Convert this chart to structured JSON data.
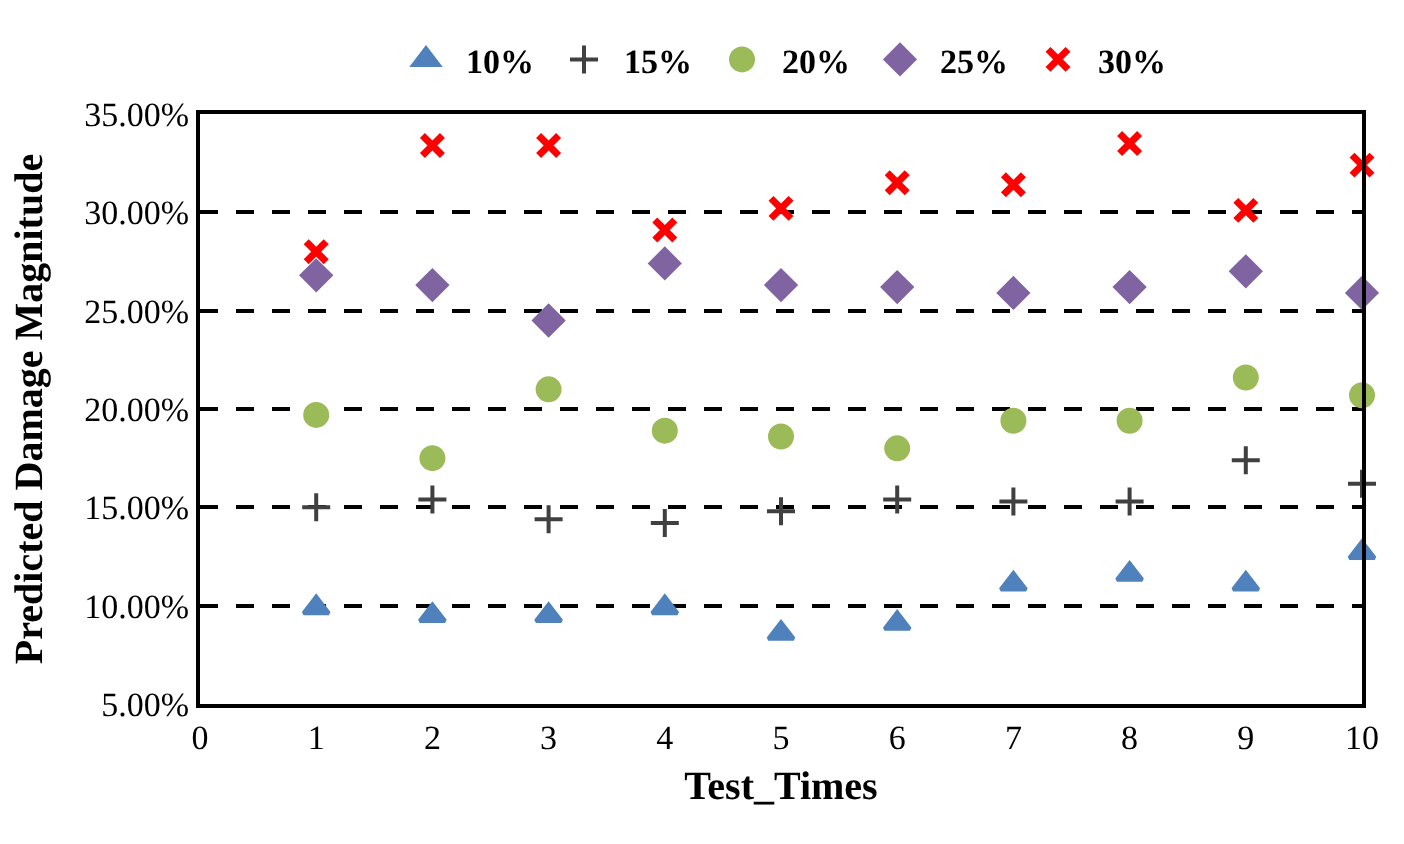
{
  "chart_data": {
    "type": "scatter",
    "xlabel": "Test_Times",
    "ylabel": "Predicted Damage Magnitude",
    "x": [
      1,
      2,
      3,
      4,
      5,
      6,
      7,
      8,
      9,
      10
    ],
    "series": [
      {
        "name": "10%",
        "color": "#4f81bd",
        "marker": "triangle",
        "values": [
          9.9,
          9.5,
          9.5,
          9.9,
          8.6,
          9.1,
          11.1,
          11.6,
          11.1,
          12.7
        ]
      },
      {
        "name": "15%",
        "color": "#404040",
        "marker": "cross",
        "values": [
          15.0,
          15.4,
          14.4,
          14.2,
          14.8,
          15.4,
          15.3,
          15.3,
          17.4,
          16.2
        ]
      },
      {
        "name": "20%",
        "color": "#9bbb59",
        "marker": "circle",
        "values": [
          19.7,
          17.5,
          21.0,
          18.9,
          18.6,
          18.0,
          19.4,
          19.4,
          21.6,
          20.7
        ]
      },
      {
        "name": "25%",
        "color": "#8064a2",
        "marker": "diamond",
        "values": [
          26.8,
          26.3,
          24.5,
          27.4,
          26.3,
          26.2,
          25.9,
          26.2,
          27.0,
          25.9
        ]
      },
      {
        "name": "30%",
        "color": "#ff0000",
        "marker": "cross",
        "values": [
          28.0,
          33.4,
          33.4,
          29.1,
          30.2,
          31.5,
          31.4,
          33.5,
          30.1,
          32.4
        ]
      }
    ],
    "xlim": [
      0,
      10
    ],
    "xticks": [
      0,
      1,
      2,
      3,
      4,
      5,
      6,
      7,
      8,
      9,
      10
    ],
    "ylim": [
      5,
      35
    ],
    "yticks": [
      {
        "value": 5,
        "label": "5.00%"
      },
      {
        "value": 10,
        "label": "10.00%"
      },
      {
        "value": 15,
        "label": "15.00%"
      },
      {
        "value": 20,
        "label": "20.00%"
      },
      {
        "value": 25,
        "label": "25.00%"
      },
      {
        "value": 30,
        "label": "30.00%"
      },
      {
        "value": 35,
        "label": "35.00%"
      }
    ],
    "grid": "y",
    "line_style": "dashed",
    "legend": "top"
  }
}
